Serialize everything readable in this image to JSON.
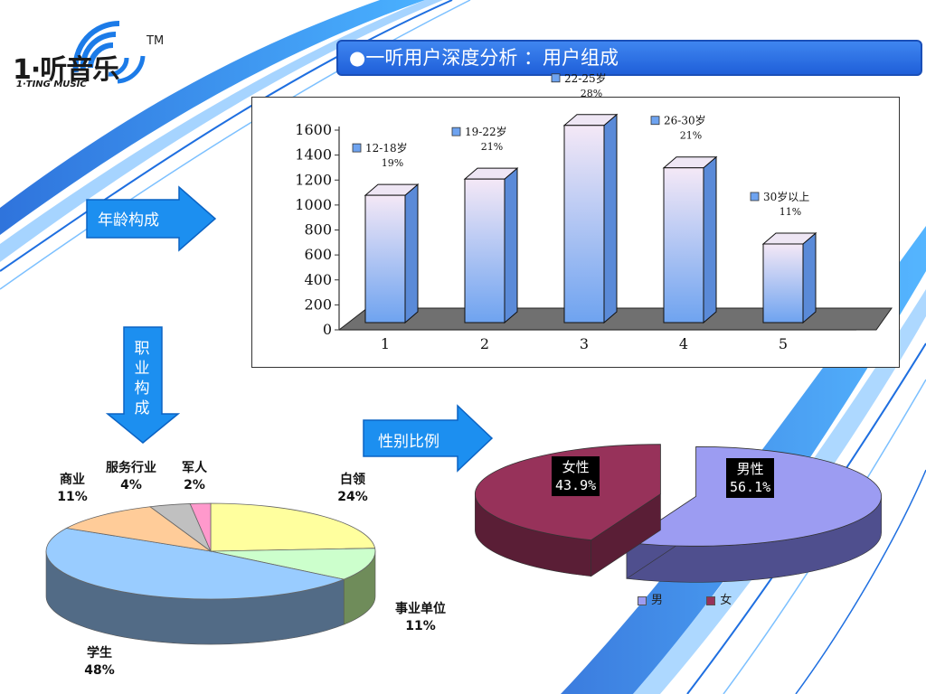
{
  "logo": {
    "text": "1·听音乐",
    "sub": "1·TING MUSIC",
    "tm": "TM"
  },
  "slide_title": "●一听用户深度分析 ：用户组成",
  "arrows": {
    "age": "年龄构成",
    "occupation": [
      "职",
      "业",
      "构",
      "成"
    ],
    "gender": "性别比例"
  },
  "colors": {
    "title_bar": "#2a6be6",
    "arrow": "#1c8ff0",
    "bar_top": "#f4e8f6",
    "bar_bottom": "#6ea3f0",
    "female": "#97325a",
    "male": "#9c9cf2"
  },
  "chart_data": [
    {
      "type": "bar",
      "categories": [
        "1",
        "2",
        "3",
        "4",
        "5"
      ],
      "values": [
        1020,
        1150,
        1580,
        1240,
        630
      ],
      "ylim": [
        0,
        1600
      ],
      "yticks": [
        "0",
        "200",
        "400",
        "600",
        "800",
        "1000",
        "1200",
        "1400",
        "1600"
      ],
      "grid": false,
      "annotations": [
        {
          "label": "12-18岁",
          "pct": "19%"
        },
        {
          "label": "19-22岁",
          "pct": "21%"
        },
        {
          "label": "22-25岁",
          "pct": "28%"
        },
        {
          "label": "26-30岁",
          "pct": "21%"
        },
        {
          "label": "30岁以上",
          "pct": "11%"
        }
      ]
    },
    {
      "type": "pie",
      "slices": [
        {
          "name": "白领",
          "value": 24,
          "pct": "24%",
          "color": "#ffff9e",
          "side": "#c9c96e"
        },
        {
          "name": "事业单位",
          "value": 11,
          "pct": "11%",
          "color": "#ccffcc",
          "side": "#6f8c5a"
        },
        {
          "name": "学生",
          "value": 48,
          "pct": "48%",
          "color": "#99ccff",
          "side": "#526b86"
        },
        {
          "name": "商业",
          "value": 11,
          "pct": "11%",
          "color": "#ffcc99",
          "side": "#a88158"
        },
        {
          "name": "服务行业",
          "value": 4,
          "pct": "4%",
          "color": "#c0c0c0",
          "side": "#777777"
        },
        {
          "name": "军人",
          "value": 2,
          "pct": "2%",
          "color": "#ff99cc",
          "side": "#b05a8a"
        }
      ]
    },
    {
      "type": "pie",
      "slices": [
        {
          "name": "男性",
          "value": 56.1,
          "pct": "56.1%",
          "legend": "男"
        },
        {
          "name": "女性",
          "value": 43.9,
          "pct": "43.9%",
          "legend": "女"
        }
      ],
      "legend_position": "bottom"
    }
  ]
}
